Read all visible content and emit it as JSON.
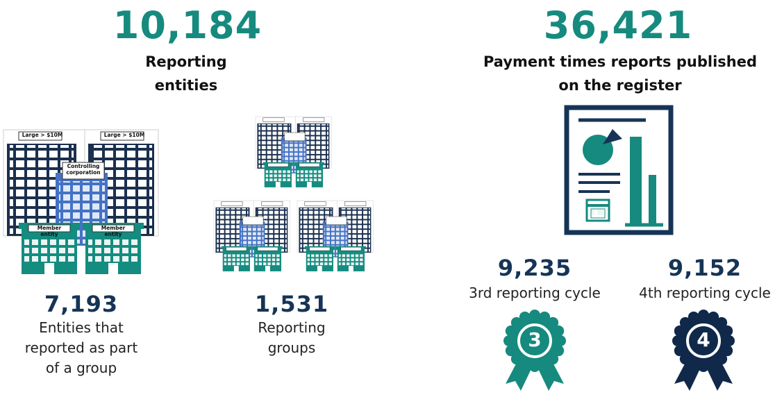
{
  "reporting_entities": {
    "total": "10,184",
    "label": "Reporting entities",
    "illustration": {
      "tower_label": "Large > $10M",
      "corporation_label": "Controlling corporation",
      "member_label": "Member entity"
    },
    "breakdown": [
      {
        "value": "7,193",
        "label": "Entities that reported as part of a group"
      },
      {
        "value": "1,531",
        "label": "Reporting groups"
      }
    ]
  },
  "reports": {
    "total": "36,421",
    "label": "Payment times reports published on the register",
    "cycles": [
      {
        "value": "9,235",
        "label": "3rd reporting cycle",
        "badge": "3"
      },
      {
        "value": "9,152",
        "label": "4th reporting cycle",
        "badge": "4"
      }
    ]
  }
}
